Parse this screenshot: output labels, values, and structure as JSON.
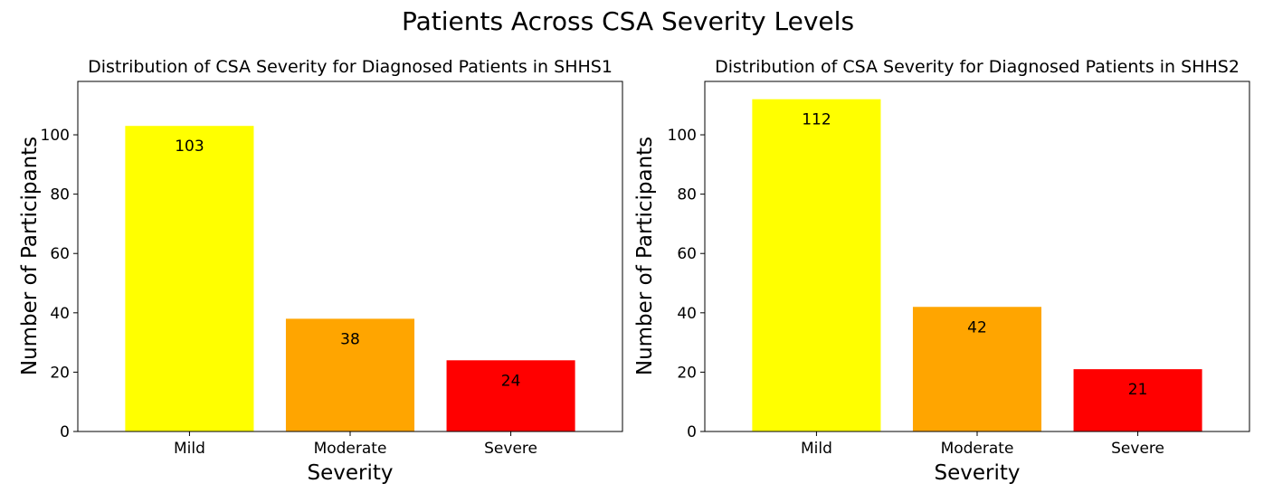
{
  "figure": {
    "title": "Patients Across CSA Severity Levels"
  },
  "chart_data": [
    {
      "type": "bar",
      "title": "Distribution of CSA Severity for Diagnosed Patients in SHHS1",
      "xlabel": "Severity",
      "ylabel": "Number of Participants",
      "categories": [
        "Mild",
        "Moderate",
        "Severe"
      ],
      "values": [
        103,
        38,
        24
      ],
      "colors": [
        "#ffff00",
        "#ffa500",
        "#ff0000"
      ],
      "ylim": [
        0,
        118
      ],
      "yticks": [
        0,
        20,
        40,
        60,
        80,
        100
      ],
      "grid": false
    },
    {
      "type": "bar",
      "title": "Distribution of CSA Severity for Diagnosed Patients in SHHS2",
      "xlabel": "Severity",
      "ylabel": "Number of Participants",
      "categories": [
        "Mild",
        "Moderate",
        "Severe"
      ],
      "values": [
        112,
        42,
        21
      ],
      "colors": [
        "#ffff00",
        "#ffa500",
        "#ff0000"
      ],
      "ylim": [
        0,
        118
      ],
      "yticks": [
        0,
        20,
        40,
        60,
        80,
        100
      ],
      "grid": false
    }
  ]
}
